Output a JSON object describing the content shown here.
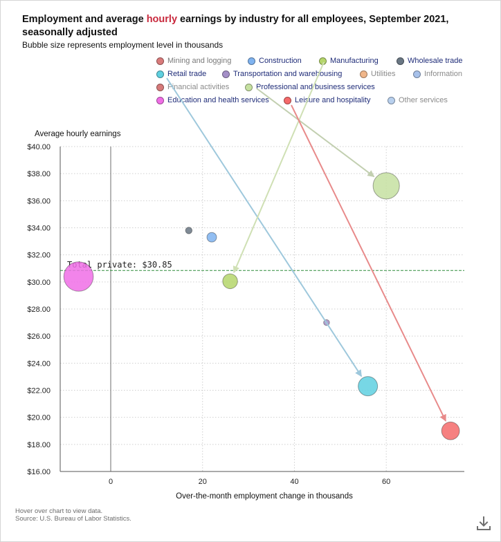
{
  "title_parts": [
    "Employment and average ",
    "hourly",
    " earnings by industry for all employees, September 2021, seasonally adjusted"
  ],
  "subtitle": "Bubble size represents employment level in thousands",
  "footnote": {
    "hover": "Hover over chart to view data.",
    "source": "Source: U.S. Bureau of Labor Statistics."
  },
  "icons": {
    "download": "download-icon"
  },
  "colors": {
    "title_highlight": "#c8283c",
    "reference_line": "#2e8b3a"
  },
  "chart_data": {
    "type": "scatter",
    "ylabel": "Average hourly earnings",
    "xlabel": "Over-the-month employment change in thousands",
    "xlim": [
      -11,
      77
    ],
    "ylim": [
      16,
      40
    ],
    "x_ticks": [
      0,
      20,
      40,
      60
    ],
    "y_ticks": [
      16,
      18,
      20,
      22,
      24,
      26,
      28,
      30,
      32,
      34,
      36,
      38,
      40
    ],
    "y_tick_format": "$0.00",
    "grid": true,
    "reference_line": {
      "y": 30.85,
      "label": "Total private: $30.85"
    },
    "series": [
      {
        "name": "Mining and logging",
        "color": "#d97b7b",
        "active": false,
        "x": null,
        "y": null,
        "size": null,
        "legend_text_color": "#7a7a7a"
      },
      {
        "name": "Construction",
        "color": "#7fb3f0",
        "active": true,
        "x": 22,
        "y": 33.3,
        "size": 1.6,
        "legend_text_color": "#1f2c78"
      },
      {
        "name": "Manufacturing",
        "color": "#b5d66b",
        "active": true,
        "x": 26,
        "y": 30.05,
        "size": 3.8,
        "legend_text_color": "#1f2c78"
      },
      {
        "name": "Wholesale trade",
        "color": "#6a7784",
        "active": true,
        "x": 17,
        "y": 33.8,
        "size": 0.75,
        "legend_text_color": "#1f2c78"
      },
      {
        "name": "Retail trade",
        "color": "#5fd0e0",
        "active": true,
        "x": 56,
        "y": 22.3,
        "size": 6.5,
        "legend_text_color": "#1f2c78"
      },
      {
        "name": "Transportation and warehousing",
        "color": "#a48fc7",
        "active": true,
        "x": 47,
        "y": 27.0,
        "size": 0.6,
        "legend_text_color": "#1f2c78"
      },
      {
        "name": "Utilities",
        "color": "#f0b68a",
        "active": false,
        "x": null,
        "y": null,
        "size": null,
        "legend_text_color": "#8a8a8a"
      },
      {
        "name": "Information",
        "color": "#a7c1ea",
        "active": false,
        "x": null,
        "y": null,
        "size": null,
        "legend_text_color": "#8a8a8a"
      },
      {
        "name": "Financial activities",
        "color": "#d67a7a",
        "active": false,
        "x": null,
        "y": null,
        "size": null,
        "legend_text_color": "#8a8a8a"
      },
      {
        "name": "Professional and business services",
        "color": "#c6e1a1",
        "active": true,
        "x": 60,
        "y": 37.1,
        "size": 12.0,
        "legend_text_color": "#1f2c78"
      },
      {
        "name": "Education and health services",
        "color": "#f06ee6",
        "active": true,
        "x": -7,
        "y": 30.4,
        "size": 15.0,
        "legend_text_color": "#1f2c78"
      },
      {
        "name": "Leisure and hospitality",
        "color": "#f56a6a",
        "active": true,
        "x": 74,
        "y": 19.0,
        "size": 5.5,
        "legend_text_color": "#1f2c78"
      },
      {
        "name": "Other services",
        "color": "#b8d0ee",
        "active": false,
        "x": null,
        "y": null,
        "size": null,
        "legend_text_color": "#8a8a8a"
      }
    ],
    "annotations": [
      {
        "series": "Retail trade",
        "color": "#9ec8dc"
      },
      {
        "series": "Manufacturing",
        "color": "#cfe0b4"
      },
      {
        "series": "Professional and business services",
        "color": "#c2cfb0"
      },
      {
        "series": "Leisure and hospitality",
        "color": "#e88a8a"
      }
    ]
  }
}
